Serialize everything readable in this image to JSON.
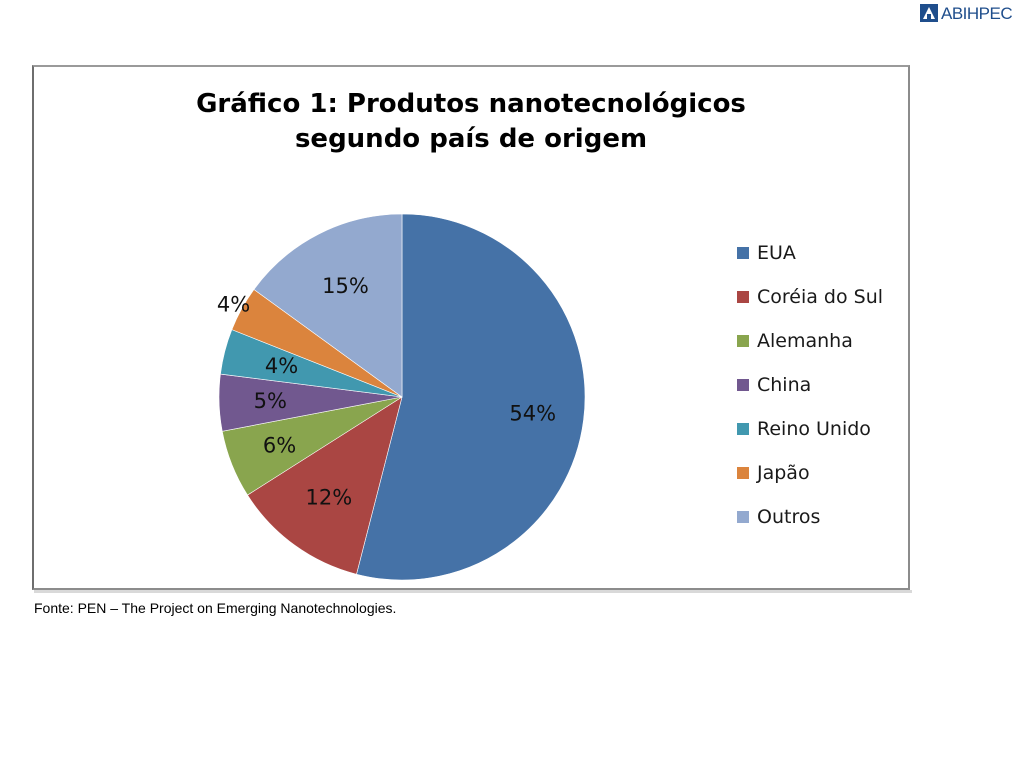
{
  "brand": {
    "logo_text": "ABIHPEC",
    "logo_icon": "abihpec-logo-icon"
  },
  "chart_data": {
    "type": "pie",
    "title_lines": [
      "Gráfico 1: Produtos nanotecnológicos",
      "segundo país de origem"
    ],
    "categories": [
      "EUA",
      "Coréia do Sul",
      "Alemanha",
      "China",
      "Reino Unido",
      "Japão",
      "Outros"
    ],
    "values": [
      54,
      12,
      6,
      5,
      4,
      4,
      15
    ],
    "data_labels": [
      "54%",
      "12%",
      "6%",
      "5%",
      "4%",
      "4%",
      "15%"
    ],
    "colors": [
      "#4572a7",
      "#aa4643",
      "#89a54e",
      "#71588f",
      "#4198af",
      "#db843d",
      "#93a9cf"
    ],
    "start_angle_deg": 0,
    "direction": "clockwise",
    "legend_position": "right"
  },
  "source_text": "Fonte: PEN – The Project on Emerging Nanotechnologies."
}
